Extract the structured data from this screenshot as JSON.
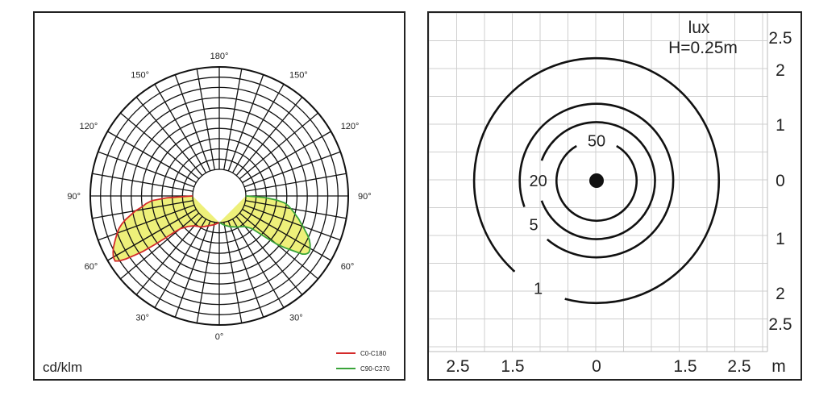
{
  "chart_data": [
    {
      "type": "polar",
      "unit_label": "cd/klm",
      "angle_labels": [
        {
          "text": "180°",
          "deg": 180,
          "side": "top"
        },
        {
          "text": "150°",
          "deg": 150,
          "side": "left"
        },
        {
          "text": "150°",
          "deg": 150,
          "side": "right"
        },
        {
          "text": "120°",
          "deg": 120,
          "side": "left"
        },
        {
          "text": "120°",
          "deg": 120,
          "side": "right"
        },
        {
          "text": "90°",
          "deg": 90,
          "side": "left"
        },
        {
          "text": "90°",
          "deg": 90,
          "side": "right"
        },
        {
          "text": "60°",
          "deg": 60,
          "side": "left"
        },
        {
          "text": "60°",
          "deg": 60,
          "side": "right"
        },
        {
          "text": "30°",
          "deg": 30,
          "side": "left"
        },
        {
          "text": "30°",
          "deg": 30,
          "side": "right"
        },
        {
          "text": "0°",
          "deg": 0,
          "side": "bottom"
        }
      ],
      "rings": 10,
      "spoke_step_deg": 10,
      "series": [
        {
          "name": "C0-C180",
          "color": "#d42a2a",
          "side": "left",
          "curve": [
            [
              -90,
              0
            ],
            [
              -88,
              2.5
            ],
            [
              -86,
              4
            ],
            [
              -84,
              4.6
            ],
            [
              -82,
              5
            ],
            [
              -80,
              5.7
            ],
            [
              -78,
              6.2
            ],
            [
              -76,
              6.8
            ],
            [
              -74,
              7.3
            ],
            [
              -72,
              7.7
            ],
            [
              -70,
              8.0
            ],
            [
              -68,
              8.3
            ],
            [
              -66,
              8.6
            ],
            [
              -64,
              8.9
            ],
            [
              -62,
              9.15
            ],
            [
              -60,
              9.35
            ],
            [
              -58,
              9.4
            ],
            [
              -57,
              9.05
            ],
            [
              -56,
              8.4
            ],
            [
              -55,
              7.5
            ],
            [
              -54,
              6.6
            ],
            [
              -53,
              5.3
            ],
            [
              -52,
              4.0
            ],
            [
              -51,
              3.0
            ],
            [
              -50,
              2.4
            ],
            [
              -46,
              1.7
            ],
            [
              -40,
              1.2
            ],
            [
              -30,
              0.9
            ],
            [
              -20,
              0.5
            ],
            [
              -10,
              0.25
            ],
            [
              0,
              0
            ]
          ]
        },
        {
          "name": "C90-C270",
          "color": "#3aa43a",
          "side": "right",
          "curve": [
            [
              0,
              0
            ],
            [
              10,
              0.3
            ],
            [
              20,
              0.6
            ],
            [
              30,
              0.9
            ],
            [
              40,
              1.3
            ],
            [
              45,
              1.9
            ],
            [
              48,
              3.3
            ],
            [
              50,
              4.7
            ],
            [
              52,
              5.7
            ],
            [
              54,
              6.7
            ],
            [
              55,
              7.3
            ],
            [
              56,
              7.55
            ],
            [
              57,
              7.7
            ],
            [
              58,
              7.75
            ],
            [
              60,
              7.65
            ],
            [
              62,
              7.45
            ],
            [
              64,
              7.2
            ],
            [
              66,
              6.85
            ],
            [
              68,
              6.45
            ],
            [
              70,
              6.1
            ],
            [
              72,
              5.75
            ],
            [
              74,
              5.45
            ],
            [
              76,
              5.1
            ],
            [
              78,
              4.8
            ],
            [
              80,
              4.5
            ],
            [
              82,
              4.2
            ],
            [
              84,
              3.8
            ],
            [
              86,
              3.0
            ],
            [
              88,
              1.8
            ],
            [
              90,
              0
            ]
          ]
        }
      ],
      "fill_color": "#eef07a"
    },
    {
      "type": "isolux",
      "title": "lux",
      "subtitle": "H=0.25m",
      "x_ticks": [
        {
          "text": "2.5",
          "value": -2.5
        },
        {
          "text": "1.5",
          "value": -1.5
        },
        {
          "text": "0",
          "value": 0
        },
        {
          "text": "1.5",
          "value": 1.5
        },
        {
          "text": "2.5",
          "value": 2.5
        }
      ],
      "x_unit": "m",
      "y_ticks": [
        {
          "text": "2.5",
          "value": 2.5
        },
        {
          "text": "2",
          "value": 2
        },
        {
          "text": "1",
          "value": 1
        },
        {
          "text": "0",
          "value": 0
        },
        {
          "text": "1",
          "value": -1
        },
        {
          "text": "2",
          "value": -2
        },
        {
          "text": "2.5",
          "value": -2.5
        }
      ],
      "contours": [
        {
          "label": "50",
          "radius_m": 0.72
        },
        {
          "label": "20",
          "radius_m": 1.05
        },
        {
          "label": "5",
          "radius_m": 1.38
        },
        {
          "label": "1",
          "radius_m": 2.2
        }
      ],
      "center": [
        0,
        0
      ]
    }
  ],
  "legend": {
    "c0_label": "C0-C180",
    "c90_label": "C90-C270"
  }
}
